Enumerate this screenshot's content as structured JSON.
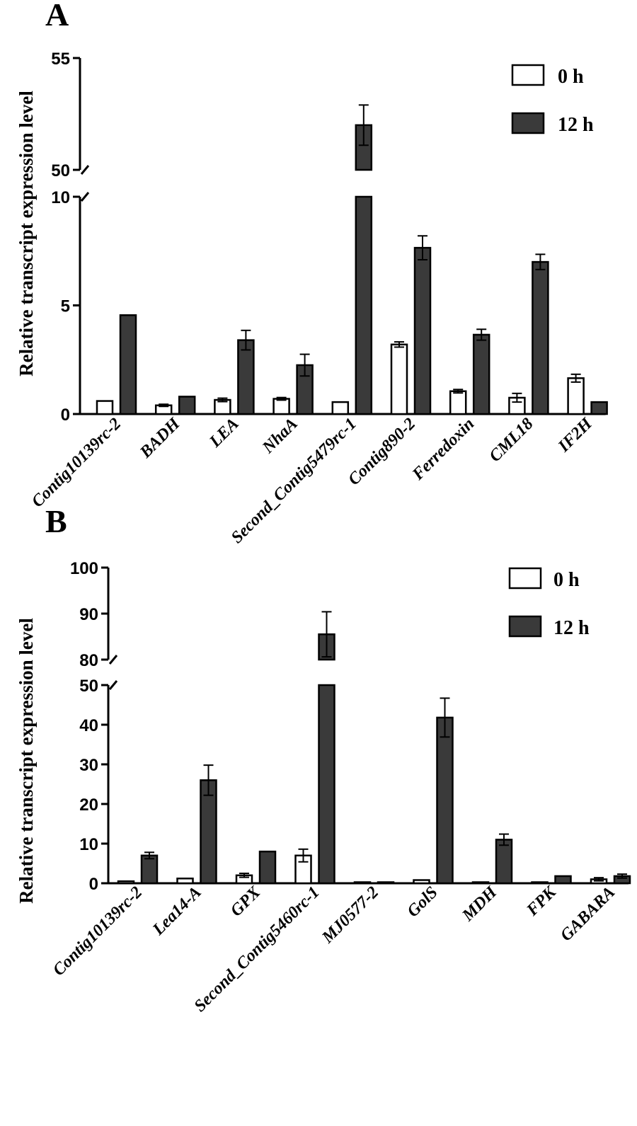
{
  "chart_data": [
    {
      "panel": "A",
      "type": "bar",
      "ylabel": "Relative transcript expression level",
      "categories": [
        "Contig10139rc-2",
        "BADH",
        "LEA",
        "NhaA",
        "Second_Contig5479rc-1",
        "Contig890-2",
        "Ferredoxin",
        "CML18",
        "IF2H"
      ],
      "series": [
        {
          "name": "0 h",
          "color": "#ffffff",
          "values": [
            0.6,
            0.4,
            0.65,
            0.7,
            0.55,
            3.2,
            1.05,
            0.75,
            1.65
          ],
          "errors": [
            0,
            0.05,
            0.08,
            0.06,
            0,
            0.12,
            0.08,
            0.2,
            0.18
          ]
        },
        {
          "name": "12 h",
          "color": "#3a3a3a",
          "values": [
            4.55,
            0.8,
            3.4,
            2.25,
            52.0,
            7.65,
            3.65,
            7.0,
            0.55
          ],
          "errors": [
            0,
            0,
            0.45,
            0.5,
            0.9,
            0.55,
            0.25,
            0.35,
            0
          ]
        }
      ],
      "axis_break": {
        "lower_range": [
          0,
          10
        ],
        "upper_range": [
          50,
          55
        ]
      },
      "yticks_lower": [
        "0",
        "5",
        "10"
      ],
      "yticks_upper": [
        "50",
        "55"
      ],
      "legend": [
        "0 h",
        "12 h"
      ]
    },
    {
      "panel": "B",
      "type": "bar",
      "ylabel": "Relative transcript expression level",
      "categories": [
        "Contig10139rc-2",
        "Lea14-A",
        "GPX",
        "Second_Contig5460rc-1",
        "MJ0577-2",
        "GolS",
        "MDH",
        "FPK",
        "GABARA"
      ],
      "series": [
        {
          "name": "0 h",
          "color": "#ffffff",
          "values": [
            0.5,
            1.2,
            2.0,
            7.0,
            0.1,
            0.8,
            0.1,
            0.05,
            1.0
          ],
          "errors": [
            0,
            0,
            0.5,
            1.6,
            0,
            0,
            0,
            0,
            0.4
          ]
        },
        {
          "name": "12 h",
          "color": "#3a3a3a",
          "values": [
            7.0,
            26.0,
            8.0,
            85.5,
            0.05,
            41.8,
            11.0,
            1.8,
            1.8
          ],
          "errors": [
            0.8,
            3.8,
            0,
            4.9,
            0,
            4.9,
            1.4,
            0,
            0.5
          ]
        }
      ],
      "axis_break": {
        "lower_range": [
          0,
          50
        ],
        "upper_range": [
          80,
          100
        ]
      },
      "yticks_lower": [
        "0",
        "10",
        "20",
        "30",
        "40",
        "50"
      ],
      "yticks_upper": [
        "80",
        "90",
        "100"
      ],
      "legend": [
        "0 h",
        "12 h"
      ]
    }
  ]
}
